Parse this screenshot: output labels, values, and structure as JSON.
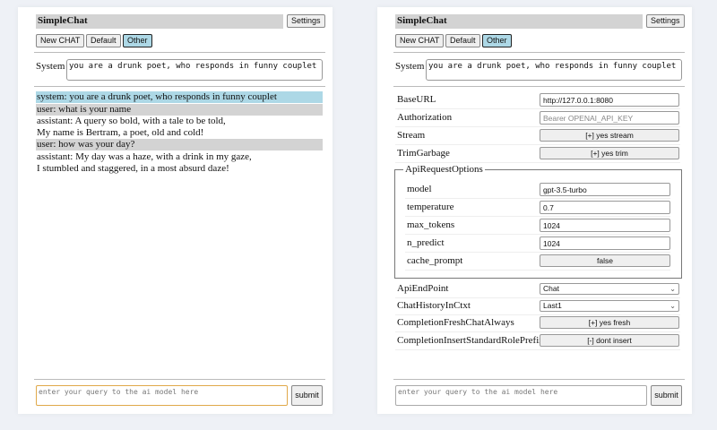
{
  "colors": {
    "background": "#eef1f6",
    "selected_button": "#add8e6",
    "system_msg": "#add8e6",
    "user_msg": "#d3d3d3",
    "focus_border": "#e0a94a"
  },
  "left": {
    "title": "SimpleChat",
    "settings_label": "Settings",
    "buttons": [
      "New CHAT",
      "Default",
      "Other"
    ],
    "system_label": "System",
    "system_value": "you are a drunk poet, who responds in funny couplet",
    "messages": [
      {
        "role": "system",
        "text": "system: you are a drunk poet, who responds in funny couplet"
      },
      {
        "role": "user",
        "text": "user: what is your name"
      },
      {
        "role": "assistant",
        "lines": [
          "assistant: A query so bold, with a tale to be told,",
          "My name is Bertram, a poet, old and cold!"
        ]
      },
      {
        "role": "user",
        "text": "user: how was your day?"
      },
      {
        "role": "assistant",
        "lines": [
          "assistant: My day was a haze, with a drink in my gaze,",
          "I stumbled and staggered, in a most absurd daze!"
        ]
      }
    ],
    "query_placeholder": "enter your query to the ai model here",
    "submit_label": "submit"
  },
  "right": {
    "title": "SimpleChat",
    "settings_label": "Settings",
    "buttons": [
      "New CHAT",
      "Default",
      "Other"
    ],
    "system_label": "System",
    "system_value": "you are a drunk poet, who responds in funny couplet",
    "settings": {
      "base_url": {
        "label": "BaseURL",
        "value": "http://127.0.0.1:8080"
      },
      "authorization": {
        "label": "Authorization",
        "placeholder": "Bearer OPENAI_API_KEY"
      },
      "stream": {
        "label": "Stream",
        "value": "[+] yes stream"
      },
      "trim_garbage": {
        "label": "TrimGarbage",
        "value": "[+] yes trim"
      },
      "api_request_options": {
        "legend": "ApiRequestOptions",
        "model": {
          "label": "model",
          "value": "gpt-3.5-turbo"
        },
        "temperature": {
          "label": "temperature",
          "value": "0.7"
        },
        "max_tokens": {
          "label": "max_tokens",
          "value": "1024"
        },
        "n_predict": {
          "label": "n_predict",
          "value": "1024"
        },
        "cache_prompt": {
          "label": "cache_prompt",
          "value": "false"
        }
      },
      "api_endpoint": {
        "label": "ApiEndPoint",
        "value": "Chat"
      },
      "chat_history": {
        "label": "ChatHistoryInCtxt",
        "value": "Last1"
      },
      "fresh_chat": {
        "label": "CompletionFreshChatAlways",
        "value": "[+] yes fresh"
      },
      "role_prefix": {
        "label": "CompletionInsertStandardRolePrefix",
        "value": "[-] dont insert"
      }
    },
    "query_placeholder": "enter your query to the ai model here",
    "submit_label": "submit"
  }
}
